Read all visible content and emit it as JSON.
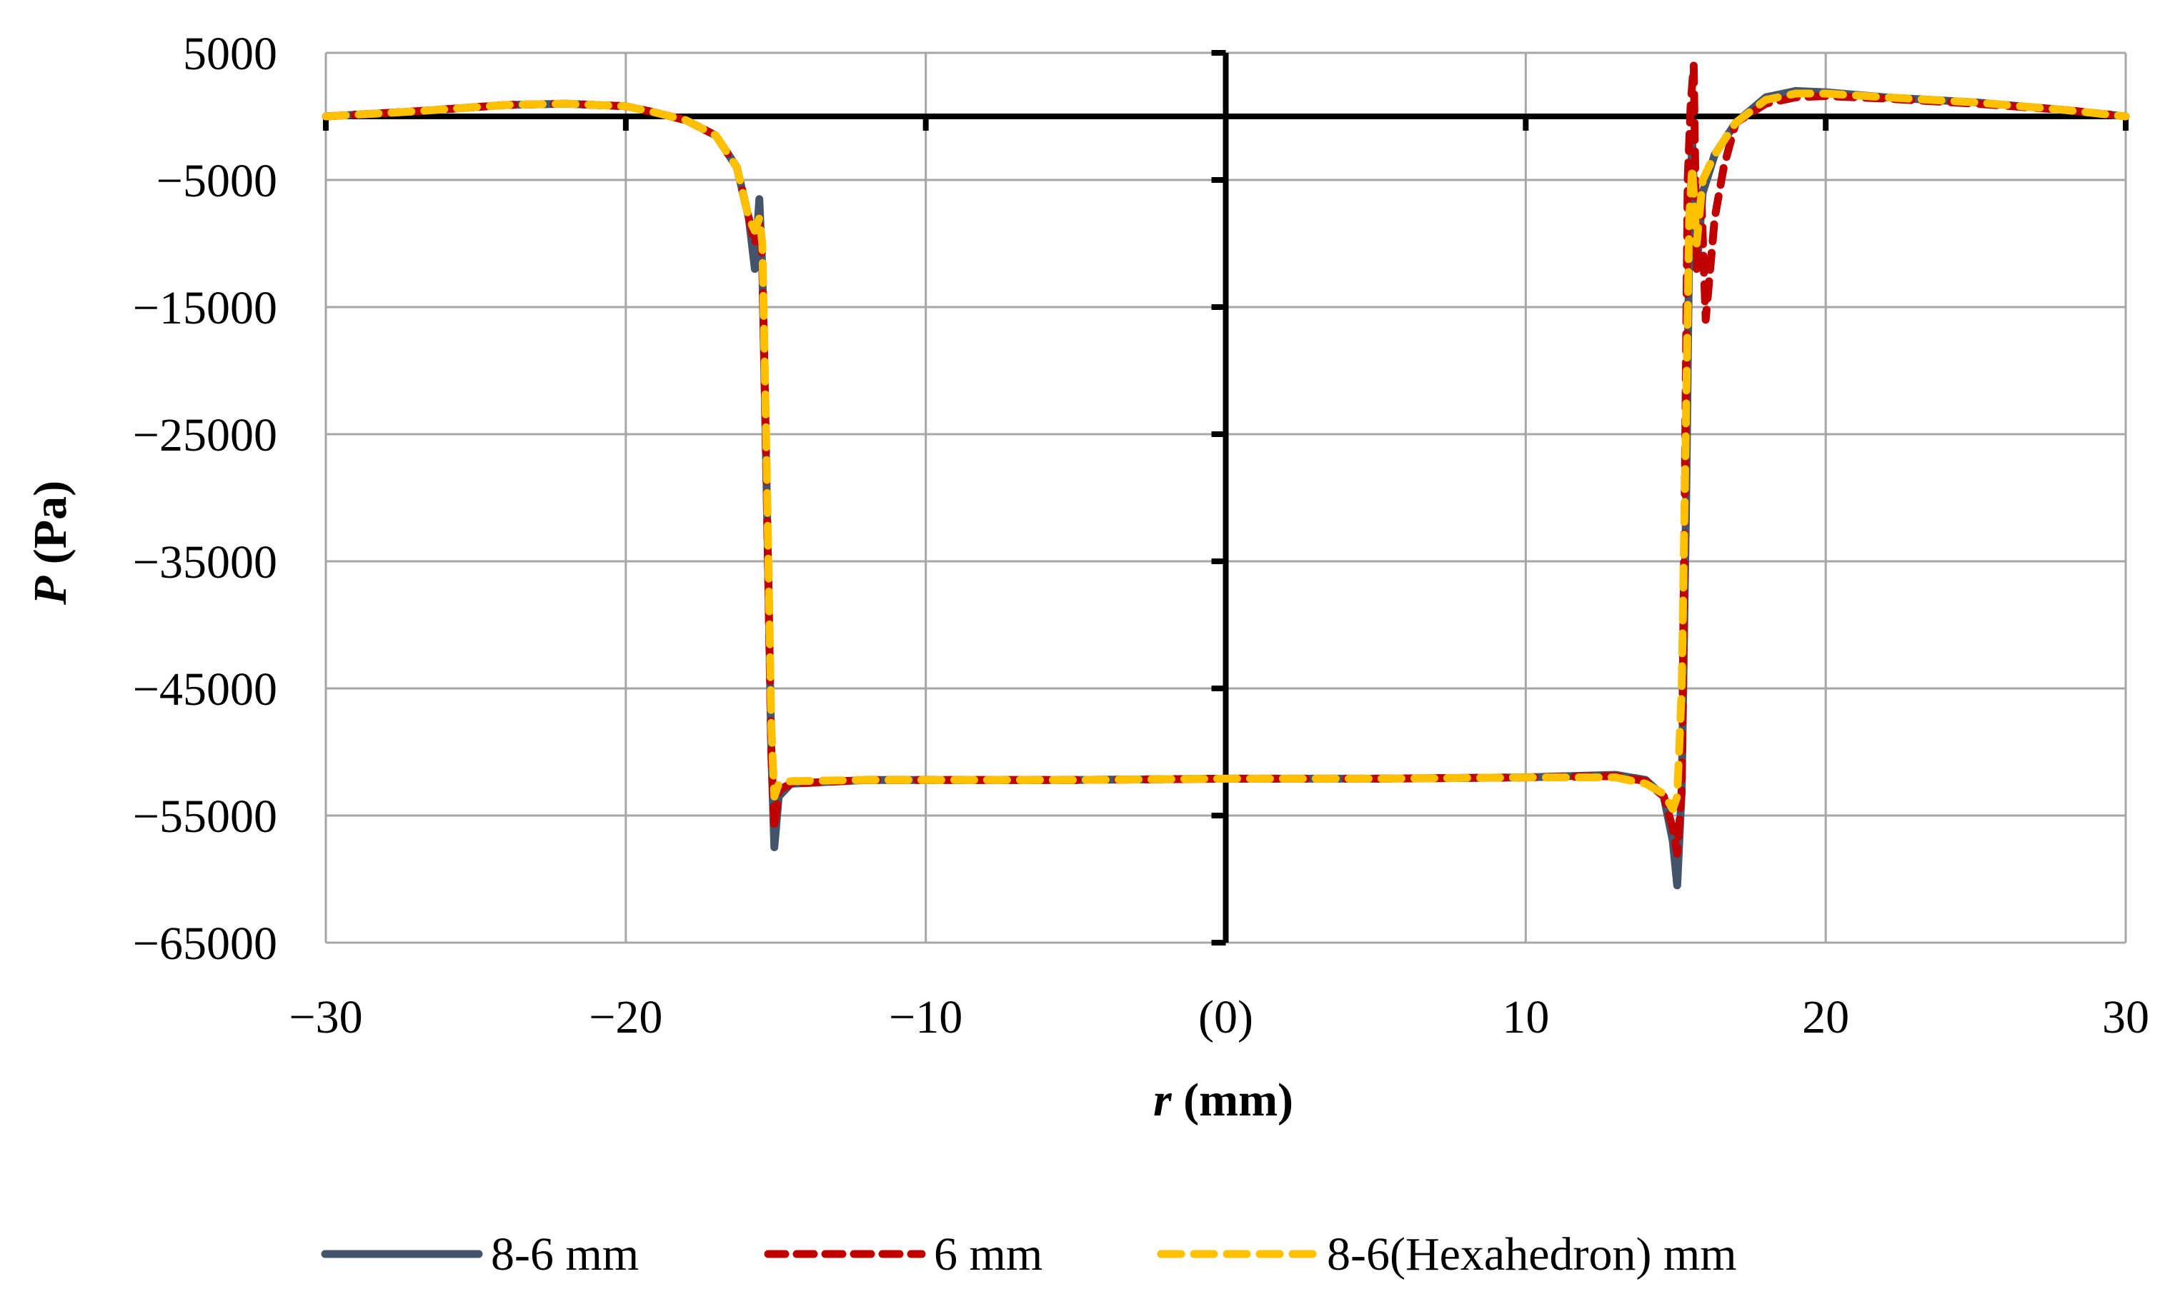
{
  "chart_data": {
    "type": "line",
    "title": "",
    "xlabel": {
      "italic": "r",
      "rest": " (mm)"
    },
    "ylabel": {
      "italic": "P",
      "rest": " (Pa)"
    },
    "xlim": [
      -30,
      30
    ],
    "ylim": [
      -65000,
      5000
    ],
    "x_ticks": [
      -30,
      -20,
      -10,
      0,
      10,
      20,
      30
    ],
    "x_tick_labels": [
      "−30",
      "−20",
      "−10",
      "(0)",
      "10",
      "20",
      "30"
    ],
    "y_ticks": [
      5000,
      -5000,
      -15000,
      -25000,
      -35000,
      -45000,
      -55000,
      -65000
    ],
    "y_tick_labels": [
      "5000",
      "−5000",
      "−15000",
      "−25000",
      "−35000",
      "−45000",
      "−55000",
      "−65000"
    ],
    "grid": true,
    "legend_position": "bottom",
    "series": [
      {
        "name": "8-6 mm",
        "color": "#44546A",
        "style": "solid",
        "points": [
          [
            -30,
            0
          ],
          [
            -27,
            400
          ],
          [
            -24,
            900
          ],
          [
            -22,
            1000
          ],
          [
            -20,
            800
          ],
          [
            -19,
            300
          ],
          [
            -18,
            -300
          ],
          [
            -17,
            -1500
          ],
          [
            -16.3,
            -4000
          ],
          [
            -15.9,
            -8000
          ],
          [
            -15.7,
            -12000
          ],
          [
            -15.55,
            -6500
          ],
          [
            -15.45,
            -12000
          ],
          [
            -15.3,
            -30000
          ],
          [
            -15.15,
            -50000
          ],
          [
            -15.05,
            -57500
          ],
          [
            -14.9,
            -53500
          ],
          [
            -14.5,
            -52500
          ],
          [
            -12,
            -52200
          ],
          [
            -5,
            -52200
          ],
          [
            0,
            -52100
          ],
          [
            5,
            -52100
          ],
          [
            10,
            -52000
          ],
          [
            13,
            -51800
          ],
          [
            14,
            -52200
          ],
          [
            14.6,
            -53500
          ],
          [
            14.9,
            -57000
          ],
          [
            15.05,
            -60500
          ],
          [
            15.2,
            -53000
          ],
          [
            15.35,
            -30000
          ],
          [
            15.45,
            -10000
          ],
          [
            15.55,
            -2000
          ],
          [
            15.7,
            -12000
          ],
          [
            15.9,
            -6000
          ],
          [
            16.3,
            -3000
          ],
          [
            17,
            -500
          ],
          [
            18,
            1500
          ],
          [
            19,
            2000
          ],
          [
            20,
            1900
          ],
          [
            22,
            1500
          ],
          [
            25,
            1100
          ],
          [
            28,
            500
          ],
          [
            30,
            0
          ]
        ]
      },
      {
        "name": "6 mm",
        "color": "#C00000",
        "style": "dashed",
        "points": [
          [
            -30,
            0
          ],
          [
            -27,
            400
          ],
          [
            -24,
            900
          ],
          [
            -22,
            1000
          ],
          [
            -20,
            800
          ],
          [
            -19,
            300
          ],
          [
            -18,
            -300
          ],
          [
            -17,
            -1500
          ],
          [
            -16.3,
            -4000
          ],
          [
            -15.9,
            -8000
          ],
          [
            -15.7,
            -10000
          ],
          [
            -15.55,
            -8500
          ],
          [
            -15.45,
            -11000
          ],
          [
            -15.3,
            -30000
          ],
          [
            -15.15,
            -50000
          ],
          [
            -15.05,
            -56000
          ],
          [
            -14.9,
            -53000
          ],
          [
            -14.5,
            -52500
          ],
          [
            -12,
            -52200
          ],
          [
            -5,
            -52200
          ],
          [
            0,
            -52100
          ],
          [
            5,
            -52100
          ],
          [
            10,
            -52000
          ],
          [
            13,
            -51900
          ],
          [
            14,
            -52300
          ],
          [
            14.6,
            -53500
          ],
          [
            14.9,
            -56000
          ],
          [
            15.05,
            -58000
          ],
          [
            15.2,
            -53000
          ],
          [
            15.3,
            -30000
          ],
          [
            15.4,
            -5000
          ],
          [
            15.5,
            1000
          ],
          [
            15.6,
            4000
          ],
          [
            15.7,
            -12000
          ],
          [
            15.85,
            -6000
          ],
          [
            16,
            -16000
          ],
          [
            16.3,
            -8000
          ],
          [
            16.6,
            -4000
          ],
          [
            17,
            -500
          ],
          [
            18,
            1000
          ],
          [
            19,
            1500
          ],
          [
            20,
            1600
          ],
          [
            22,
            1400
          ],
          [
            25,
            1000
          ],
          [
            28,
            500
          ],
          [
            30,
            0
          ]
        ]
      },
      {
        "name": "8-6(Hexahedron) mm",
        "color": "#FFC000",
        "style": "dashed",
        "points": [
          [
            -30,
            0
          ],
          [
            -27,
            400
          ],
          [
            -24,
            900
          ],
          [
            -22,
            1000
          ],
          [
            -20,
            800
          ],
          [
            -19,
            300
          ],
          [
            -18,
            -300
          ],
          [
            -17,
            -1500
          ],
          [
            -16.3,
            -4000
          ],
          [
            -15.9,
            -8000
          ],
          [
            -15.7,
            -9000
          ],
          [
            -15.55,
            -8000
          ],
          [
            -15.45,
            -10000
          ],
          [
            -15.3,
            -28000
          ],
          [
            -15.15,
            -48000
          ],
          [
            -15.05,
            -53500
          ],
          [
            -14.9,
            -52500
          ],
          [
            -14.5,
            -52300
          ],
          [
            -12,
            -52200
          ],
          [
            -5,
            -52200
          ],
          [
            0,
            -52100
          ],
          [
            5,
            -52100
          ],
          [
            10,
            -52000
          ],
          [
            13,
            -52000
          ],
          [
            14,
            -52500
          ],
          [
            14.6,
            -53300
          ],
          [
            14.9,
            -54500
          ],
          [
            15.05,
            -53500
          ],
          [
            15.2,
            -45000
          ],
          [
            15.3,
            -30000
          ],
          [
            15.45,
            -8000
          ],
          [
            15.55,
            -4000
          ],
          [
            15.7,
            -10000
          ],
          [
            15.9,
            -5000
          ],
          [
            16.3,
            -3000
          ],
          [
            17,
            -500
          ],
          [
            18,
            1300
          ],
          [
            19,
            1800
          ],
          [
            20,
            1800
          ],
          [
            22,
            1500
          ],
          [
            25,
            1100
          ],
          [
            28,
            500
          ],
          [
            30,
            0
          ]
        ]
      }
    ]
  }
}
